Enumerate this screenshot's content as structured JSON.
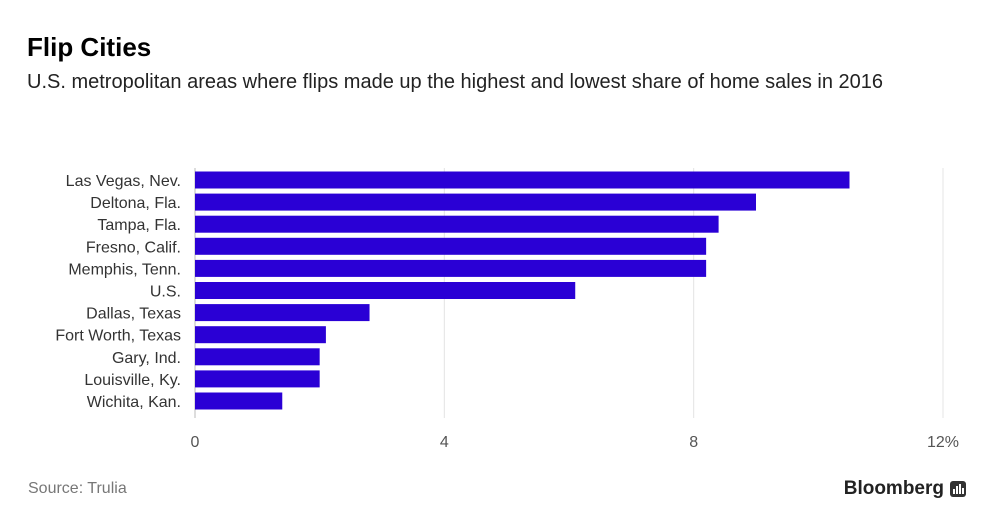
{
  "title": "Flip Cities",
  "subtitle": "U.S. metropolitan areas where flips made up the highest and lowest share of home sales in 2016",
  "source": "Source: Trulia",
  "brand": "Bloomberg",
  "colors": {
    "bar": "#2a00d5",
    "grid": "#e4e4e4",
    "text": "#333333"
  },
  "chart_data": {
    "type": "bar",
    "orientation": "horizontal",
    "categories": [
      "Las Vegas, Nev.",
      "Deltona, Fla.",
      "Tampa, Fla.",
      "Fresno, Calif.",
      "Memphis, Tenn.",
      "U.S.",
      "Dallas, Texas",
      "Fort Worth, Texas",
      "Gary, Ind.",
      "Louisville, Ky.",
      "Wichita, Kan."
    ],
    "values": [
      10.5,
      9.0,
      8.4,
      8.2,
      8.2,
      6.1,
      2.8,
      2.1,
      2.0,
      2.0,
      1.4
    ],
    "xlim": [
      0,
      12
    ],
    "xticks": [
      0,
      4,
      8,
      12
    ],
    "xtick_labels": [
      "0",
      "4",
      "8",
      "12%"
    ],
    "grid": true
  }
}
